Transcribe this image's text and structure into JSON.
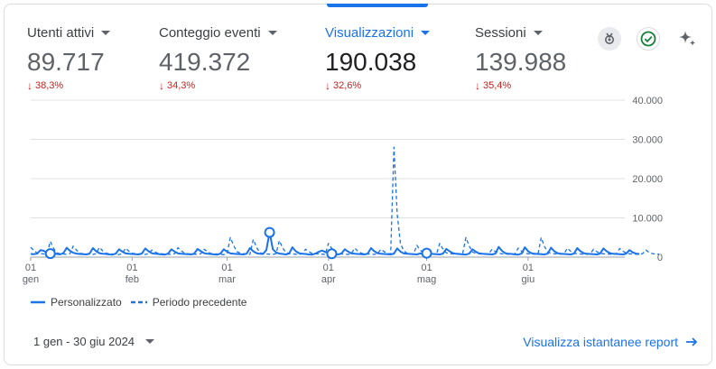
{
  "metrics": [
    {
      "label": "Utenti attivi",
      "value": "89.717",
      "delta": "38,3%",
      "active": false
    },
    {
      "label": "Conteggio eventi",
      "value": "419.372",
      "delta": "34,3%",
      "active": false
    },
    {
      "label": "Visualizzazioni",
      "value": "190.038",
      "delta": "32,6%",
      "active": true
    },
    {
      "label": "Sessioni",
      "value": "139.988",
      "delta": "35,4%",
      "active": false
    }
  ],
  "icons": [
    "insights-badge-icon",
    "check-circle-icon",
    "sparkle-icon"
  ],
  "footer": {
    "date_range": "1 gen - 30 giu 2024",
    "report_link": "Visualizza istantanee report"
  },
  "colors": {
    "primary": "#1a73e8",
    "negative": "#c5221f",
    "grid": "#e0e0e0"
  },
  "chart_data": {
    "type": "line",
    "title": "",
    "xlabel": "",
    "ylabel": "",
    "ylim": [
      0,
      40000
    ],
    "y_ticks": [
      "40.000",
      "30.000",
      "20.000",
      "10.000",
      "0"
    ],
    "x_tick_labels": [
      {
        "day": "01",
        "month": "gen",
        "index": 0
      },
      {
        "day": "01",
        "month": "feb",
        "index": 31
      },
      {
        "day": "01",
        "month": "mar",
        "index": 60
      },
      {
        "day": "01",
        "month": "apr",
        "index": 91
      },
      {
        "day": "01",
        "month": "mag",
        "index": 121
      },
      {
        "day": "01",
        "month": "giu",
        "index": 152
      }
    ],
    "x_days": 182,
    "legend_position": "bottom-left",
    "series": [
      {
        "name": "Personalizzato",
        "style": "solid",
        "values": [
          800,
          750,
          900,
          1800,
          1600,
          1100,
          900,
          850,
          800,
          700,
          1000,
          2400,
          1600,
          1100,
          900,
          800,
          750,
          700,
          900,
          2300,
          1500,
          1000,
          850,
          800,
          700,
          650,
          900,
          2000,
          1400,
          950,
          850,
          800,
          750,
          700,
          950,
          2200,
          1500,
          1000,
          850,
          800,
          700,
          650,
          900,
          2000,
          1400,
          950,
          850,
          800,
          750,
          700,
          900,
          2100,
          1500,
          1000,
          850,
          800,
          700,
          650,
          900,
          2000,
          1400,
          950,
          850,
          800,
          750,
          700,
          900,
          2300,
          1500,
          1000,
          850,
          800,
          1800,
          6300,
          2000,
          1200,
          900,
          800,
          700,
          950,
          2500,
          1500,
          1000,
          850,
          800,
          700,
          650,
          900,
          1300,
          1700,
          1300,
          1000,
          850,
          800,
          700,
          950,
          2000,
          1400,
          950,
          850,
          800,
          750,
          700,
          900,
          2300,
          1500,
          1000,
          850,
          800,
          750,
          700,
          900,
          2200,
          1400,
          950,
          850,
          800,
          750,
          700,
          950,
          800,
          1000,
          850,
          800,
          750,
          700,
          900,
          2100,
          1500,
          1000,
          850,
          800,
          700,
          650,
          900,
          2000,
          1400,
          950,
          850,
          800,
          750,
          700,
          900,
          2600,
          1600,
          1000,
          850,
          800,
          700,
          650,
          900,
          2500,
          1500,
          1000,
          850,
          800,
          750,
          700,
          900,
          2400,
          1500,
          1000,
          850,
          800,
          750,
          700,
          900,
          2300,
          1500,
          1000,
          850,
          800,
          750,
          700,
          900,
          2200,
          1500,
          1000,
          850,
          800,
          750,
          700,
          900,
          1800,
          1200,
          900,
          800
        ],
        "markers": [
          6,
          73,
          92,
          121
        ]
      },
      {
        "name": "Periodo precedente",
        "style": "dashed",
        "values": [
          2500,
          1700,
          1000,
          900,
          800,
          900,
          4000,
          2200,
          1100,
          850,
          800,
          700,
          900,
          2800,
          1800,
          1000,
          850,
          800,
          750,
          700,
          900,
          2500,
          1600,
          1000,
          850,
          800,
          700,
          650,
          950,
          2300,
          1500,
          1000,
          850,
          800,
          750,
          700,
          900,
          1800,
          1300,
          950,
          850,
          800,
          750,
          700,
          900,
          2400,
          1600,
          1000,
          850,
          800,
          750,
          700,
          900,
          2000,
          1400,
          950,
          850,
          800,
          700,
          650,
          900,
          5000,
          3000,
          1400,
          1000,
          850,
          800,
          700,
          4500,
          2500,
          1200,
          900,
          800,
          750,
          700,
          900,
          4200,
          2300,
          1200,
          900,
          800,
          750,
          700,
          900,
          2000,
          1400,
          950,
          850,
          800,
          750,
          700,
          3500,
          2200,
          1100,
          900,
          800,
          750,
          700,
          900,
          2300,
          1500,
          1000,
          850,
          800,
          750,
          700,
          900,
          2000,
          1400,
          950,
          850,
          28000,
          11000,
          3500,
          1600,
          1000,
          850,
          800,
          3000,
          1800,
          1100,
          900,
          800,
          750,
          700,
          3500,
          2000,
          1100,
          900,
          800,
          750,
          700,
          900,
          5000,
          2800,
          1300,
          950,
          850,
          800,
          700,
          900,
          2000,
          1400,
          950,
          850,
          800,
          750,
          700,
          900,
          2300,
          1500,
          1000,
          850,
          800,
          750,
          700,
          5000,
          2700,
          1300,
          950,
          850,
          800,
          750,
          900,
          2300,
          1500,
          1000,
          850,
          800,
          750,
          700,
          900,
          2000,
          1400,
          950,
          850,
          800,
          750,
          700,
          900,
          2200,
          1500,
          1000,
          850,
          800,
          750,
          700,
          900,
          1800,
          1200,
          900,
          800,
          750
        ]
      }
    ]
  }
}
